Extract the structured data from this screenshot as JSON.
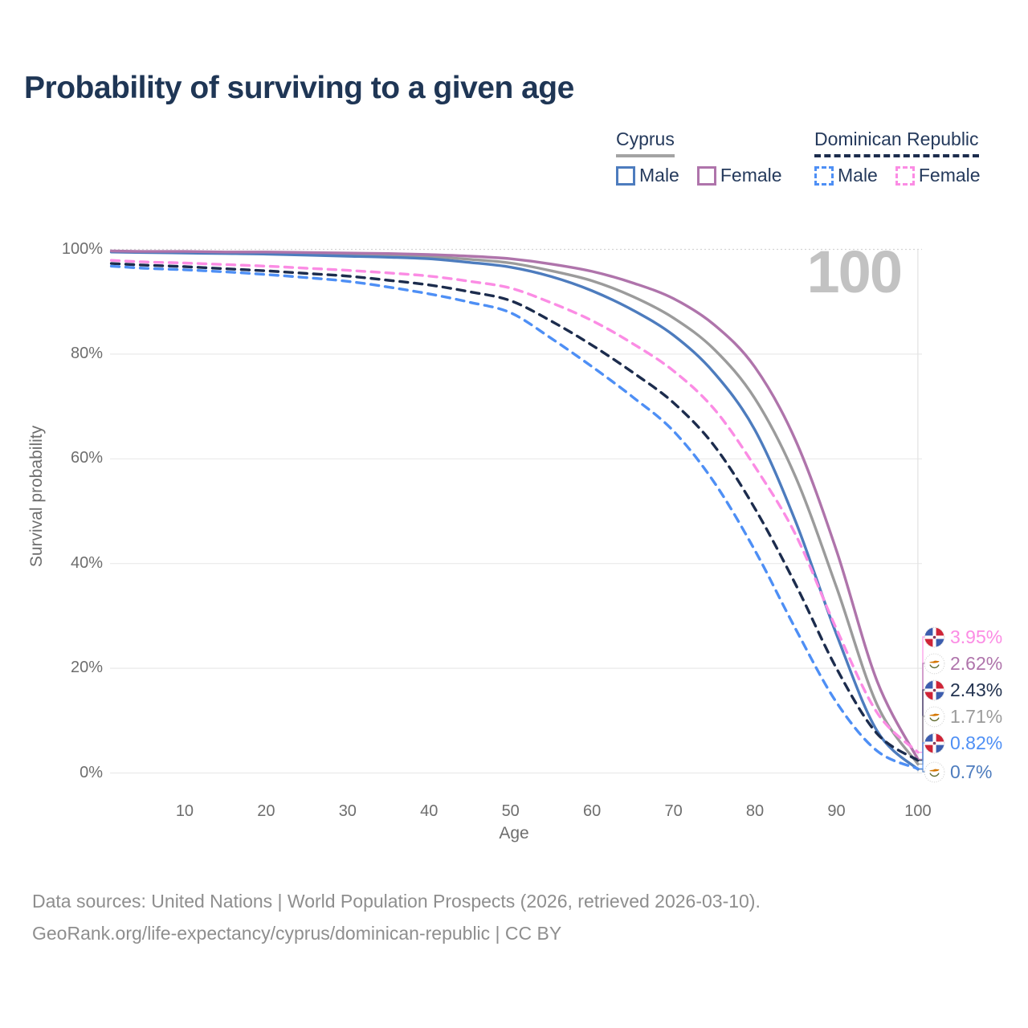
{
  "title": "Probability of surviving to a given age",
  "watermark_age": "100",
  "legend": {
    "groups": [
      {
        "title": "Cyprus",
        "line_style": "solid",
        "items": [
          {
            "label": "Male",
            "color": "#4d7cbe"
          },
          {
            "label": "Female",
            "color": "#af74ab"
          }
        ]
      },
      {
        "title": "Dominican Republic",
        "line_style": "dashed",
        "items": [
          {
            "label": "Male",
            "color": "#4e8ff5"
          },
          {
            "label": "Female",
            "color": "#fb8ce4"
          }
        ]
      }
    ]
  },
  "axes": {
    "x_label": "Age",
    "y_label": "Survival probability",
    "x_ticks": [
      {
        "v": 10,
        "label": "10"
      },
      {
        "v": 20,
        "label": "20"
      },
      {
        "v": 30,
        "label": "30"
      },
      {
        "v": 40,
        "label": "40"
      },
      {
        "v": 50,
        "label": "50"
      },
      {
        "v": 60,
        "label": "60"
      },
      {
        "v": 70,
        "label": "70"
      },
      {
        "v": 80,
        "label": "80"
      },
      {
        "v": 90,
        "label": "90"
      },
      {
        "v": 100,
        "label": "100"
      }
    ],
    "y_ticks": [
      {
        "v": 0,
        "label": "0%"
      },
      {
        "v": 20,
        "label": "20%"
      },
      {
        "v": 40,
        "label": "40%"
      },
      {
        "v": 60,
        "label": "60%"
      },
      {
        "v": 80,
        "label": "80%"
      },
      {
        "v": 100,
        "label": "100%"
      }
    ]
  },
  "chart_data": {
    "type": "line",
    "title": "Probability of surviving to a given age",
    "xlabel": "Age",
    "ylabel": "Survival probability",
    "xlim": [
      0,
      100
    ],
    "ylim": [
      0,
      100
    ],
    "grid": "horizontal",
    "current_age_marker": 100,
    "x": [
      1,
      5,
      10,
      15,
      20,
      25,
      30,
      35,
      40,
      45,
      50,
      55,
      60,
      65,
      70,
      75,
      80,
      85,
      90,
      95,
      100
    ],
    "series": [
      {
        "name": "Cyprus Total",
        "country": "Cyprus",
        "sex": "both",
        "style": "solid",
        "color": "#9b9b9b",
        "end_label": "1.71%",
        "values": [
          99.6,
          99.5,
          99.4,
          99.4,
          99.3,
          99.2,
          99.0,
          98.8,
          98.6,
          98.1,
          97.4,
          95.9,
          94.0,
          91.0,
          86.9,
          80.9,
          71.5,
          56.5,
          35.5,
          13.0,
          1.71
        ]
      },
      {
        "name": "Cyprus Male",
        "country": "Cyprus",
        "sex": "male",
        "style": "solid",
        "color": "#4d7cbe",
        "end_label": "0.7%",
        "values": [
          99.5,
          99.4,
          99.3,
          99.2,
          99.1,
          98.9,
          98.7,
          98.5,
          98.2,
          97.5,
          96.6,
          94.8,
          92.1,
          88.4,
          83.6,
          76.4,
          65.5,
          48.0,
          26.5,
          8.0,
          0.7
        ]
      },
      {
        "name": "Cyprus Female",
        "country": "Cyprus",
        "sex": "female",
        "style": "solid",
        "color": "#af74ab",
        "end_label": "2.62%",
        "values": [
          99.7,
          99.6,
          99.6,
          99.5,
          99.5,
          99.4,
          99.3,
          99.2,
          99.0,
          98.7,
          98.2,
          97.2,
          95.8,
          93.6,
          90.6,
          85.6,
          77.5,
          63.5,
          42.5,
          17.5,
          2.62
        ]
      },
      {
        "name": "Dominican Republic Total",
        "country": "Dominican Republic",
        "sex": "both",
        "style": "dashed",
        "color": "#1c2c4d",
        "end_label": "2.43%",
        "values": [
          97.3,
          97.0,
          96.7,
          96.3,
          95.9,
          95.4,
          94.9,
          94.1,
          93.2,
          91.9,
          90.2,
          86.3,
          81.7,
          76.5,
          70.7,
          62.5,
          50.5,
          36.0,
          20.0,
          7.5,
          2.43
        ]
      },
      {
        "name": "Dominican Republic Male",
        "country": "Dominican Republic",
        "sex": "male",
        "style": "dashed",
        "color": "#4e8ff5",
        "end_label": "0.82%",
        "values": [
          96.8,
          96.4,
          96.1,
          95.7,
          95.2,
          94.6,
          93.9,
          92.8,
          91.5,
          89.9,
          87.9,
          83.0,
          77.6,
          71.8,
          65.3,
          55.5,
          42.5,
          27.5,
          13.5,
          4.2,
          0.82
        ]
      },
      {
        "name": "Dominican Republic Female",
        "country": "Dominican Republic",
        "sex": "female",
        "style": "dashed",
        "color": "#fb8ce4",
        "end_label": "3.95%",
        "values": [
          97.9,
          97.6,
          97.4,
          97.1,
          96.8,
          96.4,
          96.0,
          95.5,
          94.9,
          93.9,
          92.6,
          89.8,
          86.4,
          82.0,
          76.8,
          69.5,
          58.5,
          45.5,
          27.5,
          11.5,
          3.95
        ]
      }
    ]
  },
  "end_labels": [
    {
      "value": "3.95%",
      "series": "Dominican Republic Female",
      "flag": "dominican-republic",
      "color": "#fb8ce4"
    },
    {
      "value": "2.62%",
      "series": "Cyprus Female",
      "flag": "cyprus",
      "color": "#af74ab"
    },
    {
      "value": "2.43%",
      "series": "Dominican Republic Total",
      "flag": "dominican-republic",
      "color": "#22324f"
    },
    {
      "value": "1.71%",
      "series": "Cyprus Total",
      "flag": "cyprus",
      "color": "#9b9b9b"
    },
    {
      "value": "0.82%",
      "series": "Dominican Republic Male",
      "flag": "dominican-republic",
      "color": "#4e8ff5"
    },
    {
      "value": "0.7%",
      "series": "Cyprus Male",
      "flag": "cyprus",
      "color": "#4d7cbe"
    }
  ],
  "footer": {
    "line1": "Data sources: United Nations | World Population Prospects (2026, retrieved 2026-03-10).",
    "line2": "GeoRank.org/life-expectancy/cyprus/dominican-republic | CC BY"
  }
}
